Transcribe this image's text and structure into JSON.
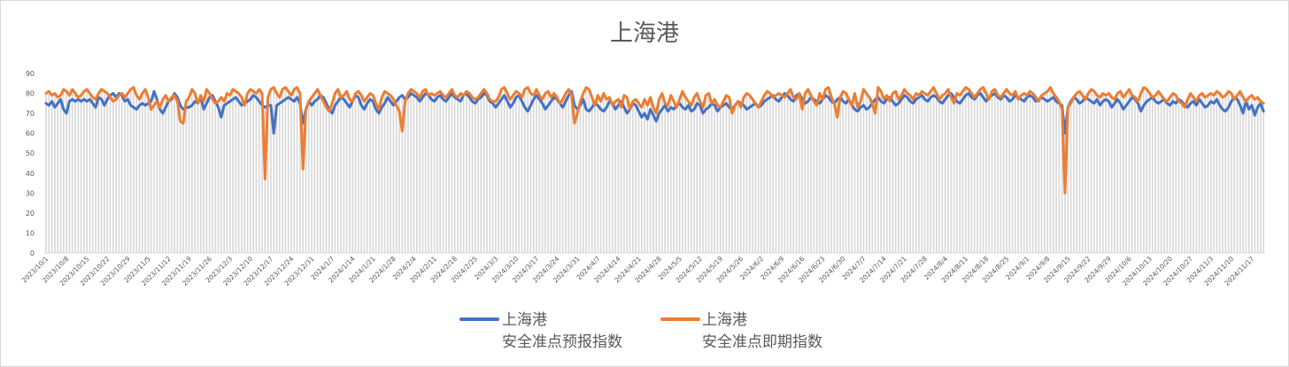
{
  "chart_data": {
    "type": "line",
    "title": "上海港",
    "xlabel": "",
    "ylabel": "",
    "x_start": "2023/10/1",
    "x_end": "2024/11/21",
    "x_step": "1 day",
    "ylim": [
      0,
      90
    ],
    "y_ticks": [
      "0",
      "10",
      "20",
      "30",
      "40",
      "50",
      "60",
      "70",
      "80",
      "90"
    ],
    "x_tick_labels": [
      "2023/10/1",
      "2023/10/8",
      "2023/10/15",
      "2023/10/22",
      "2023/10/29",
      "2023/11/5",
      "2023/11/12",
      "2023/11/19",
      "2023/11/26",
      "2023/12/3",
      "2023/12/10",
      "2023/12/17",
      "2023/12/24",
      "2023/12/31",
      "2024/1/7",
      "2024/1/14",
      "2024/1/21",
      "2024/1/28",
      "2024/2/4",
      "2024/2/11",
      "2024/2/18",
      "2024/2/25",
      "2024/3/3",
      "2024/3/10",
      "2024/3/17",
      "2024/3/24",
      "2024/3/31",
      "2024/4/7",
      "2024/4/14",
      "2024/4/21",
      "2024/4/28",
      "2024/5/5",
      "2024/5/12",
      "2024/5/19",
      "2024/5/26",
      "2024/6/2",
      "2024/6/9",
      "2024/6/16",
      "2024/6/23",
      "2024/6/30",
      "2024/7/7",
      "2024/7/14",
      "2024/7/21",
      "2024/7/28",
      "2024/8/4",
      "2024/8/11",
      "2024/8/18",
      "2024/8/25",
      "2024/9/1",
      "2024/9/8",
      "2024/9/15",
      "2024/9/22",
      "2024/9/29",
      "2024/10/6",
      "2024/10/13",
      "2024/10/20",
      "2024/10/27",
      "2024/11/3",
      "2024/11/10",
      "2024/11/17"
    ],
    "grid": false,
    "drop_lines": true,
    "legend_position": "bottom",
    "series": [
      {
        "name_line1": "上海港",
        "name_line2": "安全准点预报指数",
        "color": "#4472C4",
        "values": [
          75,
          74,
          76,
          73,
          75,
          77,
          72,
          70,
          76,
          77,
          76,
          77,
          76,
          77,
          76,
          77,
          75,
          73,
          78,
          77,
          74,
          77,
          79,
          80,
          78,
          80,
          79,
          76,
          77,
          74,
          73,
          72,
          74,
          75,
          74,
          75,
          76,
          81,
          77,
          72,
          70,
          73,
          76,
          77,
          80,
          78,
          74,
          72,
          73,
          73,
          74,
          76,
          75,
          78,
          72,
          75,
          78,
          79,
          76,
          73,
          68,
          74,
          75,
          76,
          77,
          78,
          76,
          74,
          75,
          76,
          77,
          79,
          78,
          76,
          74,
          73,
          74,
          74,
          60,
          74,
          75,
          76,
          77,
          78,
          77,
          76,
          78,
          75,
          65,
          72,
          76,
          74,
          76,
          77,
          79,
          78,
          75,
          72,
          70,
          74,
          76,
          78,
          77,
          75,
          73,
          76,
          79,
          78,
          74,
          72,
          75,
          77,
          76,
          72,
          70,
          73,
          75,
          78,
          76,
          74,
          76,
          78,
          79,
          77,
          78,
          80,
          79,
          78,
          76,
          78,
          80,
          79,
          77,
          76,
          78,
          79,
          77,
          76,
          78,
          80,
          78,
          77,
          76,
          79,
          80,
          78,
          76,
          75,
          77,
          78,
          80,
          79,
          76,
          75,
          73,
          75,
          77,
          79,
          76,
          73,
          75,
          78,
          79,
          76,
          73,
          71,
          74,
          77,
          79,
          77,
          75,
          72,
          74,
          76,
          78,
          77,
          75,
          73,
          76,
          79,
          81,
          74,
          72,
          74,
          77,
          72,
          71,
          73,
          75,
          74,
          72,
          71,
          73,
          76,
          75,
          72,
          74,
          76,
          73,
          70,
          72,
          75,
          74,
          71,
          68,
          70,
          67,
          72,
          69,
          66,
          70,
          72,
          74,
          71,
          73,
          72,
          74,
          75,
          73,
          72,
          74,
          71,
          72,
          75,
          74,
          70,
          72,
          73,
          75,
          74,
          71,
          73,
          74,
          75,
          73,
          72,
          74,
          76,
          75,
          74,
          72,
          73,
          74,
          75,
          73,
          74,
          76,
          77,
          78,
          79,
          77,
          76,
          78,
          80,
          79,
          77,
          76,
          79,
          80,
          77,
          75,
          76,
          78,
          77,
          76,
          75,
          77,
          79,
          78,
          76,
          75,
          77,
          78,
          76,
          75,
          77,
          74,
          72,
          71,
          73,
          74,
          72,
          73,
          75,
          77,
          78,
          76,
          75,
          77,
          78,
          76,
          74,
          75,
          77,
          79,
          78,
          76,
          75,
          77,
          78,
          79,
          77,
          76,
          78,
          79,
          78,
          76,
          75,
          77,
          79,
          80,
          78,
          76,
          75,
          77,
          79,
          80,
          78,
          77,
          79,
          80,
          78,
          76,
          78,
          79,
          80,
          78,
          77,
          79,
          78,
          76,
          77,
          79,
          78,
          77,
          76,
          78,
          79,
          78,
          76,
          77,
          78,
          77,
          76,
          77,
          78,
          76,
          75,
          74,
          60,
          73,
          76,
          78,
          77,
          75,
          76,
          78,
          77,
          76,
          75,
          77,
          74,
          76,
          77,
          76,
          73,
          75,
          77,
          75,
          72,
          74,
          76,
          78,
          77,
          75,
          71,
          74,
          76,
          77,
          78,
          76,
          75,
          76,
          77,
          75,
          74,
          76,
          75,
          77,
          76,
          74,
          73,
          75,
          76,
          74,
          77,
          75,
          73,
          74,
          76,
          75,
          77,
          74,
          72,
          71,
          73,
          76,
          78,
          77,
          74,
          70,
          76,
          72,
          74,
          69,
          73,
          75,
          71
        ]
      },
      {
        "name_line1": "上海港",
        "name_line2": "安全准点即期指数",
        "color": "#ED7D31",
        "values": [
          80,
          81,
          79,
          80,
          78,
          79,
          82,
          81,
          79,
          82,
          80,
          78,
          79,
          81,
          82,
          80,
          78,
          77,
          80,
          82,
          81,
          80,
          78,
          76,
          77,
          79,
          80,
          78,
          80,
          82,
          83,
          79,
          77,
          80,
          82,
          78,
          72,
          74,
          76,
          73,
          77,
          79,
          76,
          78,
          79,
          76,
          66,
          65,
          76,
          78,
          82,
          80,
          75,
          79,
          76,
          82,
          80,
          77,
          75,
          76,
          78,
          76,
          80,
          79,
          82,
          81,
          80,
          78,
          74,
          80,
          82,
          81,
          80,
          82,
          80,
          37,
          78,
          82,
          83,
          80,
          78,
          82,
          83,
          81,
          79,
          82,
          83,
          80,
          42,
          72,
          76,
          78,
          80,
          82,
          79,
          76,
          73,
          71,
          75,
          80,
          82,
          78,
          79,
          81,
          77,
          76,
          80,
          81,
          79,
          76,
          78,
          80,
          79,
          75,
          72,
          78,
          81,
          80,
          79,
          77,
          74,
          71,
          61,
          76,
          80,
          82,
          81,
          80,
          78,
          81,
          82,
          79,
          80,
          79,
          80,
          81,
          79,
          78,
          80,
          82,
          79,
          78,
          80,
          79,
          81,
          80,
          78,
          77,
          78,
          80,
          82,
          80,
          77,
          76,
          76,
          78,
          82,
          83,
          80,
          77,
          79,
          81,
          80,
          78,
          82,
          83,
          80,
          79,
          82,
          79,
          77,
          80,
          81,
          78,
          80,
          78,
          75,
          77,
          80,
          82,
          79,
          65,
          70,
          76,
          80,
          83,
          82,
          78,
          74,
          79,
          76,
          80,
          77,
          78,
          74,
          76,
          77,
          73,
          79,
          78,
          72,
          76,
          77,
          75,
          73,
          77,
          74,
          78,
          73,
          70,
          77,
          80,
          75,
          74,
          79,
          76,
          73,
          77,
          81,
          78,
          76,
          74,
          78,
          80,
          76,
          73,
          79,
          80,
          75,
          77,
          74,
          73,
          76,
          79,
          78,
          70,
          74,
          76,
          73,
          78,
          80,
          79,
          77,
          75,
          73,
          76,
          79,
          81,
          80,
          78,
          79,
          80,
          79,
          78,
          80,
          82,
          78,
          77,
          80,
          72,
          80,
          82,
          79,
          76,
          74,
          80,
          77,
          82,
          83,
          78,
          75,
          68,
          78,
          81,
          80,
          77,
          74,
          80,
          73,
          76,
          82,
          80,
          78,
          75,
          70,
          83,
          81,
          77,
          79,
          76,
          80,
          81,
          77,
          79,
          82,
          80,
          79,
          77,
          80,
          79,
          81,
          80,
          79,
          81,
          83,
          80,
          77,
          79,
          80,
          82,
          78,
          75,
          80,
          79,
          81,
          83,
          82,
          80,
          78,
          80,
          82,
          83,
          80,
          77,
          81,
          82,
          79,
          78,
          80,
          82,
          80,
          79,
          81,
          77,
          79,
          80,
          79,
          81,
          80,
          78,
          76,
          79,
          80,
          81,
          83,
          80,
          78,
          76,
          72,
          30,
          73,
          75,
          78,
          80,
          81,
          79,
          77,
          80,
          82,
          81,
          79,
          78,
          80,
          79,
          80,
          78,
          77,
          80,
          81,
          78,
          80,
          82,
          79,
          78,
          76,
          80,
          83,
          82,
          80,
          78,
          79,
          81,
          79,
          77,
          76,
          78,
          80,
          79,
          76,
          75,
          73,
          77,
          80,
          78,
          76,
          79,
          80,
          78,
          79,
          80,
          79,
          81,
          80,
          78,
          79,
          81,
          80,
          77,
          79,
          81,
          78,
          76,
          78,
          79,
          77,
          78,
          76,
          75
        ]
      }
    ]
  }
}
